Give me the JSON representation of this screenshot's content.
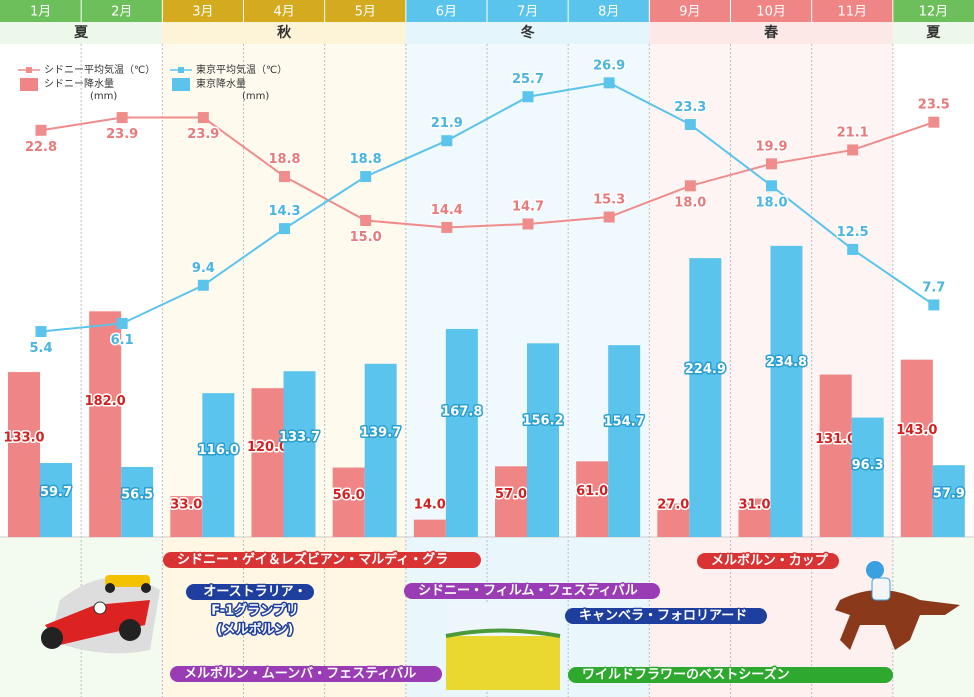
{
  "chart_data": {
    "type": "bar",
    "categories": [
      "1月",
      "2月",
      "3月",
      "4月",
      "5月",
      "6月",
      "7月",
      "8月",
      "9月",
      "10月",
      "11月",
      "12月"
    ],
    "seasons": [
      "夏",
      "秋",
      "冬",
      "春",
      "夏"
    ],
    "legend_unit": "(mm)",
    "ylim": [
      0,
      400
    ],
    "y2lim": [
      0,
      30
    ],
    "series": [
      {
        "name": "シドニー平均気温（℃）",
        "type": "line",
        "axis": "y2",
        "color": "#ef8c8c",
        "values": [
          22.8,
          23.9,
          23.9,
          18.8,
          15.0,
          14.4,
          14.7,
          15.3,
          18.0,
          19.9,
          21.1,
          23.5
        ],
        "value_labels": [
          "22.8",
          "23.9",
          "23.9",
          "18.8",
          "15.0",
          "14.4",
          "14.7",
          "15.3",
          "18.0",
          "19.9",
          "21.1",
          "23.5"
        ]
      },
      {
        "name": "東京平均気温（℃）",
        "type": "line",
        "axis": "y2",
        "color": "#5bc4ec",
        "values": [
          5.4,
          6.1,
          9.4,
          14.3,
          18.8,
          21.9,
          25.7,
          26.9,
          23.3,
          18.0,
          12.5,
          7.7
        ],
        "value_labels": [
          "5.4",
          "6.1",
          "9.4",
          "14.3",
          "18.8",
          "21.9",
          "25.7",
          "26.9",
          "23.3",
          "18.0",
          "12.5",
          "7.7"
        ]
      },
      {
        "name": "シドニー降水量",
        "type": "bar",
        "color": "#f08585",
        "values": [
          133.0,
          182.0,
          33.0,
          120.0,
          56.0,
          14.0,
          57.0,
          61.0,
          27.0,
          31.0,
          131.0,
          143.0
        ],
        "value_labels": [
          "133.0",
          "182.0",
          "33.0",
          "120.0",
          "56.0",
          "14.0",
          "57.0",
          "61.0",
          "27.0",
          "31.0",
          "131.0",
          "143.0"
        ]
      },
      {
        "name": "東京降水量",
        "type": "bar",
        "color": "#5bc4ec",
        "values": [
          59.7,
          56.5,
          116.0,
          133.7,
          139.7,
          167.8,
          156.2,
          154.7,
          224.9,
          234.8,
          96.3,
          57.9
        ],
        "value_labels": [
          "59.7",
          "56.5",
          "116.0",
          "133.7",
          "139.7",
          "167.8",
          "156.2",
          "154.7",
          "224.9",
          "234.8",
          "96.3",
          "57.9"
        ]
      }
    ]
  },
  "events": [
    {
      "lines": [
        "シドニー・ゲイ＆レズビアン・マルディ・グラ"
      ]
    },
    {
      "lines": [
        "オーストラリア・",
        "F-1グランプリ",
        "(メルボルン)"
      ]
    },
    {
      "lines": [
        "メルボルン・ムーンバ・フェスティバル"
      ]
    },
    {
      "lines": [
        "シドニー・フィルム・フェスティバル"
      ]
    },
    {
      "lines": [
        "キャンベラ・フォロリアード"
      ]
    },
    {
      "lines": [
        "メルボルン・カップ"
      ]
    },
    {
      "lines": [
        "ワイルドフラワーのベストシーズン"
      ]
    }
  ]
}
